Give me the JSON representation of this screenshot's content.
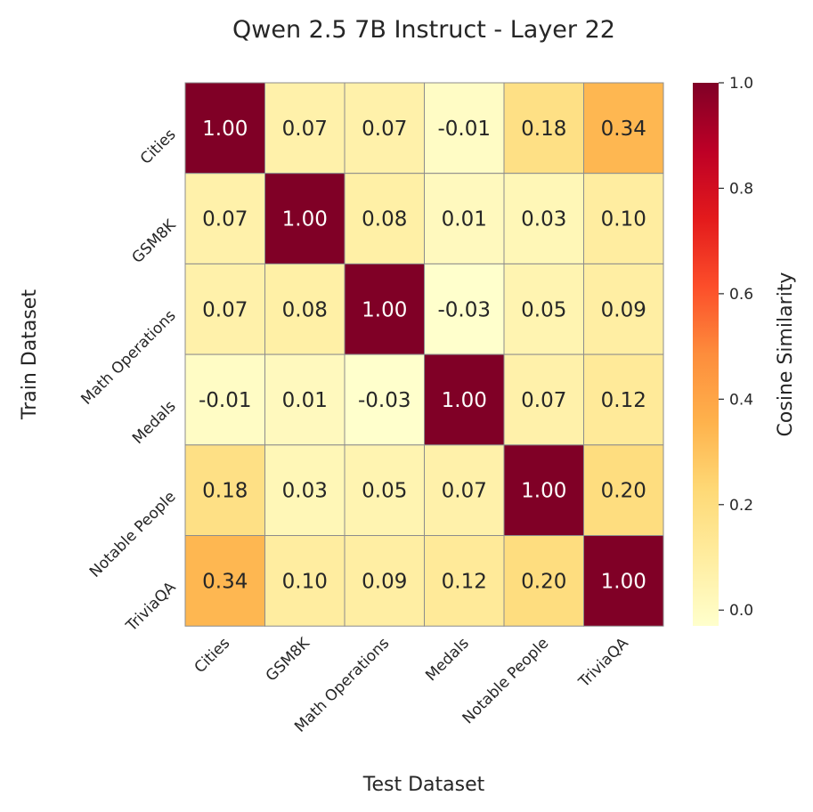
{
  "chart_data": {
    "type": "heatmap",
    "title": "Qwen 2.5 7B Instruct - Layer 22",
    "xlabel": "Test Dataset",
    "ylabel": "Train Dataset",
    "x_categories": [
      "Cities",
      "GSM8K",
      "Math Operations",
      "Medals",
      "Notable People",
      "TriviaQA"
    ],
    "y_categories": [
      "Cities",
      "GSM8K",
      "Math Operations",
      "Medals",
      "Notable People",
      "TriviaQA"
    ],
    "values": [
      [
        1.0,
        0.07,
        0.07,
        -0.01,
        0.18,
        0.34
      ],
      [
        0.07,
        1.0,
        0.08,
        0.01,
        0.03,
        0.1
      ],
      [
        0.07,
        0.08,
        1.0,
        -0.03,
        0.05,
        0.09
      ],
      [
        -0.01,
        0.01,
        -0.03,
        1.0,
        0.07,
        0.12
      ],
      [
        0.18,
        0.03,
        0.05,
        0.07,
        1.0,
        0.2
      ],
      [
        0.34,
        0.1,
        0.09,
        0.12,
        0.2,
        1.0
      ]
    ],
    "cell_labels": [
      [
        "1.00",
        "0.07",
        "0.07",
        "-0.01",
        "0.18",
        "0.34"
      ],
      [
        "0.07",
        "1.00",
        "0.08",
        "0.01",
        "0.03",
        "0.10"
      ],
      [
        "0.07",
        "0.08",
        "1.00",
        "-0.03",
        "0.05",
        "0.09"
      ],
      [
        "-0.01",
        "0.01",
        "-0.03",
        "1.00",
        "0.07",
        "0.12"
      ],
      [
        "0.18",
        "0.03",
        "0.05",
        "0.07",
        "1.00",
        "0.20"
      ],
      [
        "0.34",
        "0.10",
        "0.09",
        "0.12",
        "0.20",
        "1.00"
      ]
    ],
    "colorbar": {
      "label": "Cosine Similarity",
      "range": [
        -0.03,
        1.0
      ],
      "ticks": [
        0.0,
        0.2,
        0.4,
        0.6,
        0.8,
        1.0
      ],
      "tick_labels": [
        "0.0",
        "0.2",
        "0.4",
        "0.6",
        "0.8",
        "1.0"
      ],
      "colormap": "YlOrRd"
    },
    "grid": true
  }
}
